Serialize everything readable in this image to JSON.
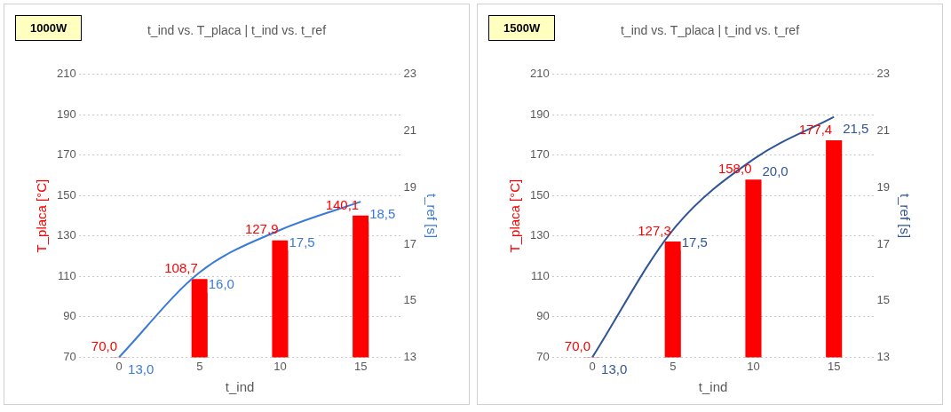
{
  "chart_data": [
    {
      "type": "bar",
      "title": "t_ind vs. T_placa | t_ind vs. t_ref",
      "annotations": [
        "1000W"
      ],
      "xlabel": "t_ind",
      "ylabel": "T_placa [°C]",
      "y2label": "t_ref [s]",
      "categories": [
        "0",
        "5",
        "10",
        "15"
      ],
      "series": [
        {
          "color": "#ff0000",
          "values": [
            70,
            108.7,
            127.9,
            140.1
          ],
          "value_labels": [
            "70,0",
            "108,7",
            "127,9",
            "140,1"
          ]
        },
        {
          "type": "line",
          "axis": "y2",
          "color": "#3a7ad8",
          "values": [
            13,
            16,
            17.5,
            18.5
          ],
          "value_labels": [
            "13,0",
            "16,0",
            "17,5",
            "18,5"
          ]
        }
      ],
      "ylim": [
        70,
        210
      ],
      "yticks": [
        70,
        90,
        110,
        130,
        150,
        170,
        190,
        210
      ],
      "y2lim": [
        13,
        23
      ],
      "y2ticks": [
        13,
        15,
        17,
        19,
        21,
        23
      ],
      "grid": "y",
      "legend": false,
      "marker": "none"
    },
    {
      "type": "bar",
      "title": "t_ind vs. T_placa | t_ind vs. t_ref",
      "annotations": [
        "1500W"
      ],
      "xlabel": "t_ind",
      "ylabel": "T_placa [°C]",
      "y2label": "t_ref [s]",
      "categories": [
        "0",
        "5",
        "10",
        "15"
      ],
      "series": [
        {
          "color": "#ff0000",
          "values": [
            70,
            127.3,
            158,
            177.4
          ],
          "value_labels": [
            "70,0",
            "127,3",
            "158,0",
            "177,4"
          ]
        },
        {
          "type": "line",
          "axis": "y2",
          "color": "#2f5597",
          "values": [
            13,
            17.5,
            20,
            21.5
          ],
          "value_labels": [
            "13,0",
            "17,5",
            "20,0",
            "21,5"
          ]
        }
      ],
      "ylim": [
        70,
        210
      ],
      "yticks": [
        70,
        90,
        110,
        130,
        150,
        170,
        190,
        210
      ],
      "y2lim": [
        13,
        23
      ],
      "y2ticks": [
        13,
        15,
        17,
        19,
        21,
        23
      ],
      "grid": "y",
      "legend": false,
      "marker": "none"
    }
  ]
}
